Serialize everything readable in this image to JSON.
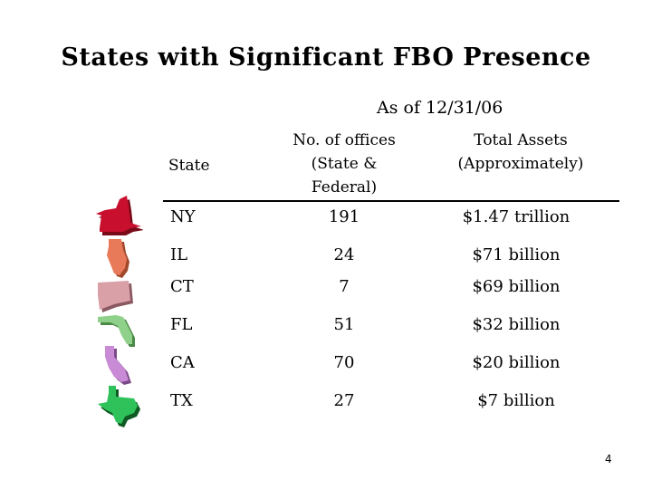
{
  "title": "States with Significant FBO Presence",
  "as_of": "As of 12/31/06",
  "headers": {
    "state": "State",
    "offices_line1": "No. of offices",
    "offices_line2": "(State &",
    "offices_line3": "Federal)",
    "assets_line1": "Total Assets",
    "assets_line2": "(Approximately)"
  },
  "rows": [
    {
      "state": "NY",
      "offices": "191",
      "assets": "$1.47 trillion",
      "color": "#c8102e"
    },
    {
      "state": "IL",
      "offices": "24",
      "assets": "$71 billion",
      "color": "#e87a5a"
    },
    {
      "state": "CT",
      "offices": "7",
      "assets": "$69 billion",
      "color": "#d9a0a8"
    },
    {
      "state": "FL",
      "offices": "51",
      "assets": "$32 billion",
      "color": "#8fd08a"
    },
    {
      "state": "CA",
      "offices": "70",
      "assets": "$20 billion",
      "color": "#c98ad6"
    },
    {
      "state": "TX",
      "offices": "27",
      "assets": "$7 billion",
      "color": "#2fc25a"
    }
  ],
  "page_number": "4"
}
